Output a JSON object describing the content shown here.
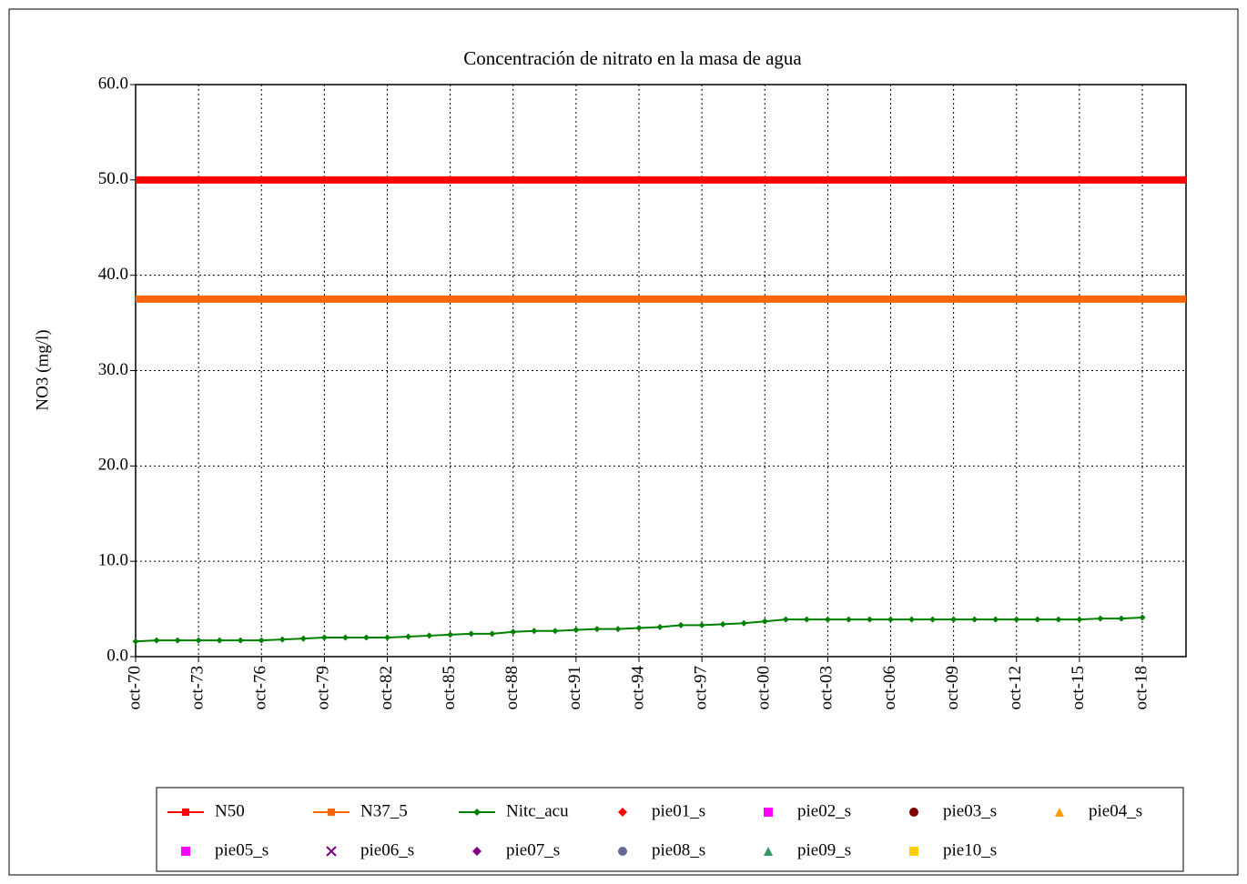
{
  "chart_data": {
    "type": "line",
    "title": "Concentración de nitrato en la masa de agua",
    "y_label": "NO3 (mg/l)",
    "xlim": [
      "1970-10",
      "2020-11"
    ],
    "xticks": [
      {
        "value": "1970-10",
        "label": "oct-70"
      },
      {
        "value": "1973-10",
        "label": "oct-73"
      },
      {
        "value": "1976-10",
        "label": "oct-76"
      },
      {
        "value": "1979-10",
        "label": "oct-79"
      },
      {
        "value": "1982-10",
        "label": "oct-82"
      },
      {
        "value": "1985-10",
        "label": "oct-85"
      },
      {
        "value": "1988-10",
        "label": "oct-88"
      },
      {
        "value": "1991-10",
        "label": "oct-91"
      },
      {
        "value": "1994-10",
        "label": "oct-94"
      },
      {
        "value": "1997-10",
        "label": "oct-97"
      },
      {
        "value": "2000-10",
        "label": "oct-00"
      },
      {
        "value": "2003-10",
        "label": "oct-03"
      },
      {
        "value": "2006-10",
        "label": "oct-06"
      },
      {
        "value": "2009-10",
        "label": "oct-09"
      },
      {
        "value": "2012-10",
        "label": "oct-12"
      },
      {
        "value": "2015-10",
        "label": "oct-15"
      },
      {
        "value": "2018-10",
        "label": "oct-18"
      }
    ],
    "ylim": [
      0,
      60
    ],
    "yticks": [
      {
        "value": 0,
        "label": "0.0"
      },
      {
        "value": 10,
        "label": "10.0"
      },
      {
        "value": 20,
        "label": "20.0"
      },
      {
        "value": 30,
        "label": "30.0"
      },
      {
        "value": 40,
        "label": "40.0"
      },
      {
        "value": 50,
        "label": "50.0"
      },
      {
        "value": 60,
        "label": "60.0"
      }
    ],
    "grid": true,
    "legend": "bottom",
    "series": [
      {
        "name": "N50",
        "color": "#ff0000",
        "marker": "square",
        "width": 8,
        "x": [
          "1970-10",
          "2020-11"
        ],
        "values": [
          50,
          50
        ]
      },
      {
        "name": "N37_5",
        "color": "#ff6600",
        "marker": "square",
        "width": 8,
        "x": [
          "1970-10",
          "2020-11"
        ],
        "values": [
          37.5,
          37.5
        ]
      },
      {
        "name": "Nitc_acu",
        "color": "#008000",
        "marker": "diamond",
        "width": 2,
        "x": [
          "1970-10",
          "1971-10",
          "1972-10",
          "1973-10",
          "1974-10",
          "1975-10",
          "1976-10",
          "1977-10",
          "1978-10",
          "1979-10",
          "1980-10",
          "1981-10",
          "1982-10",
          "1983-10",
          "1984-10",
          "1985-10",
          "1986-10",
          "1987-10",
          "1988-10",
          "1989-10",
          "1990-10",
          "1991-10",
          "1992-10",
          "1993-10",
          "1994-10",
          "1995-10",
          "1996-10",
          "1997-10",
          "1998-10",
          "1999-10",
          "2000-10",
          "2001-10",
          "2002-10",
          "2003-10",
          "2004-10",
          "2005-10",
          "2006-10",
          "2007-10",
          "2008-10",
          "2009-10",
          "2010-10",
          "2011-10",
          "2012-10",
          "2013-10",
          "2014-10",
          "2015-10",
          "2016-10",
          "2017-10",
          "2018-10"
        ],
        "values": [
          1.6,
          1.7,
          1.7,
          1.7,
          1.7,
          1.7,
          1.7,
          1.8,
          1.9,
          2.0,
          2.0,
          2.0,
          2.0,
          2.1,
          2.2,
          2.3,
          2.4,
          2.4,
          2.6,
          2.7,
          2.7,
          2.8,
          2.9,
          2.9,
          3.0,
          3.1,
          3.3,
          3.3,
          3.4,
          3.5,
          3.7,
          3.9,
          3.9,
          3.9,
          3.9,
          3.9,
          3.9,
          3.9,
          3.9,
          3.9,
          3.9,
          3.9,
          3.9,
          3.9,
          3.9,
          3.9,
          4.0,
          4.0,
          4.1
        ]
      },
      {
        "name": "pie01_s",
        "color": "#ff0000",
        "marker": "diamond",
        "x": [],
        "values": []
      },
      {
        "name": "pie02_s",
        "color": "#ff00ff",
        "marker": "square",
        "x": [],
        "values": []
      },
      {
        "name": "pie03_s",
        "color": "#800000",
        "marker": "circle",
        "x": [],
        "values": []
      },
      {
        "name": "pie04_s",
        "color": "#ff9900",
        "marker": "triangle",
        "x": [],
        "values": []
      },
      {
        "name": "pie05_s",
        "color": "#ff00ff",
        "marker": "square",
        "x": [],
        "values": []
      },
      {
        "name": "pie06_s",
        "color": "#800080",
        "marker": "cross",
        "x": [],
        "values": []
      },
      {
        "name": "pie07_s",
        "color": "#800080",
        "marker": "diamond",
        "x": [],
        "values": []
      },
      {
        "name": "pie08_s",
        "color": "#666699",
        "marker": "circle",
        "x": [],
        "values": []
      },
      {
        "name": "pie09_s",
        "color": "#339966",
        "marker": "triangle",
        "x": [],
        "values": []
      },
      {
        "name": "pie10_s",
        "color": "#ffcc00",
        "marker": "square",
        "x": [],
        "values": []
      }
    ]
  }
}
